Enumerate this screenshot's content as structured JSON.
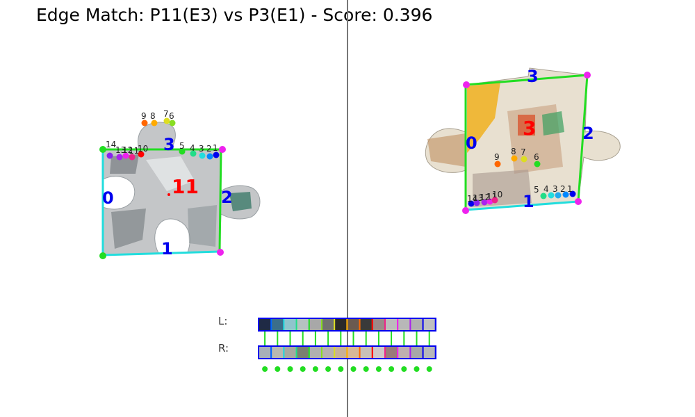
{
  "title": "Edge Match: P11(E3) vs P3(E1) - Score: 0.396",
  "colors": {
    "divider": "#777777",
    "edge_green": "#22dd22",
    "edge_cyan": "#22dddd",
    "corner": "#ee22ee",
    "label_blue": "#0000ee",
    "label_red": "#ff0000"
  },
  "left_piece": {
    "label": "11",
    "edges": {
      "e0": "0",
      "e1": "1",
      "e2": "2",
      "e3": "3"
    },
    "points": [
      "14",
      "13",
      "12",
      "11",
      "10",
      "9",
      "8",
      "7",
      "6",
      "5",
      "4",
      "3",
      "2",
      "1"
    ]
  },
  "right_piece": {
    "label": "3",
    "edges": {
      "e0": "0",
      "e1": "1",
      "e2": "2",
      "e3": "3"
    },
    "points_top": [
      "9",
      "8",
      "7",
      "6"
    ],
    "points_bottom": [
      "14",
      "13",
      "12",
      "11",
      "10",
      "5",
      "4",
      "3",
      "2",
      "1"
    ]
  },
  "comparison": {
    "left_label": "L:",
    "right_label": "R:",
    "left_swatches": [
      "#1f2a45",
      "#3b6e8a",
      "#8fc4cc",
      "#b5c2c0",
      "#a8a8a8",
      "#707070",
      "#2a2a2a",
      "#6a5a50",
      "#3a3a3a",
      "#9a8a8a",
      "#bcbcbc",
      "#b8b8b8",
      "#b0b0b0",
      "#c0c0c0"
    ],
    "right_swatches": [
      "#a8b0b8",
      "#b8b8b0",
      "#a8a8a0",
      "#7a8070",
      "#b0b0b0",
      "#b8b0b0",
      "#c8b098",
      "#d8b898",
      "#c8c0b8",
      "#d0c8c8",
      "#9a7a7a",
      "#c0b0b0",
      "#a8a8a8",
      "#b8b8b8"
    ],
    "outline_colors": [
      "#0000ee",
      "#0066ff",
      "#22dddd",
      "#22dd88",
      "#22dd22",
      "#88dd22",
      "#dddd22",
      "#ffaa00",
      "#ff6600",
      "#ff0000",
      "#ee2288",
      "#ee22ee",
      "#aa22ee",
      "#0000ee"
    ],
    "match_color": "#22dd22"
  }
}
